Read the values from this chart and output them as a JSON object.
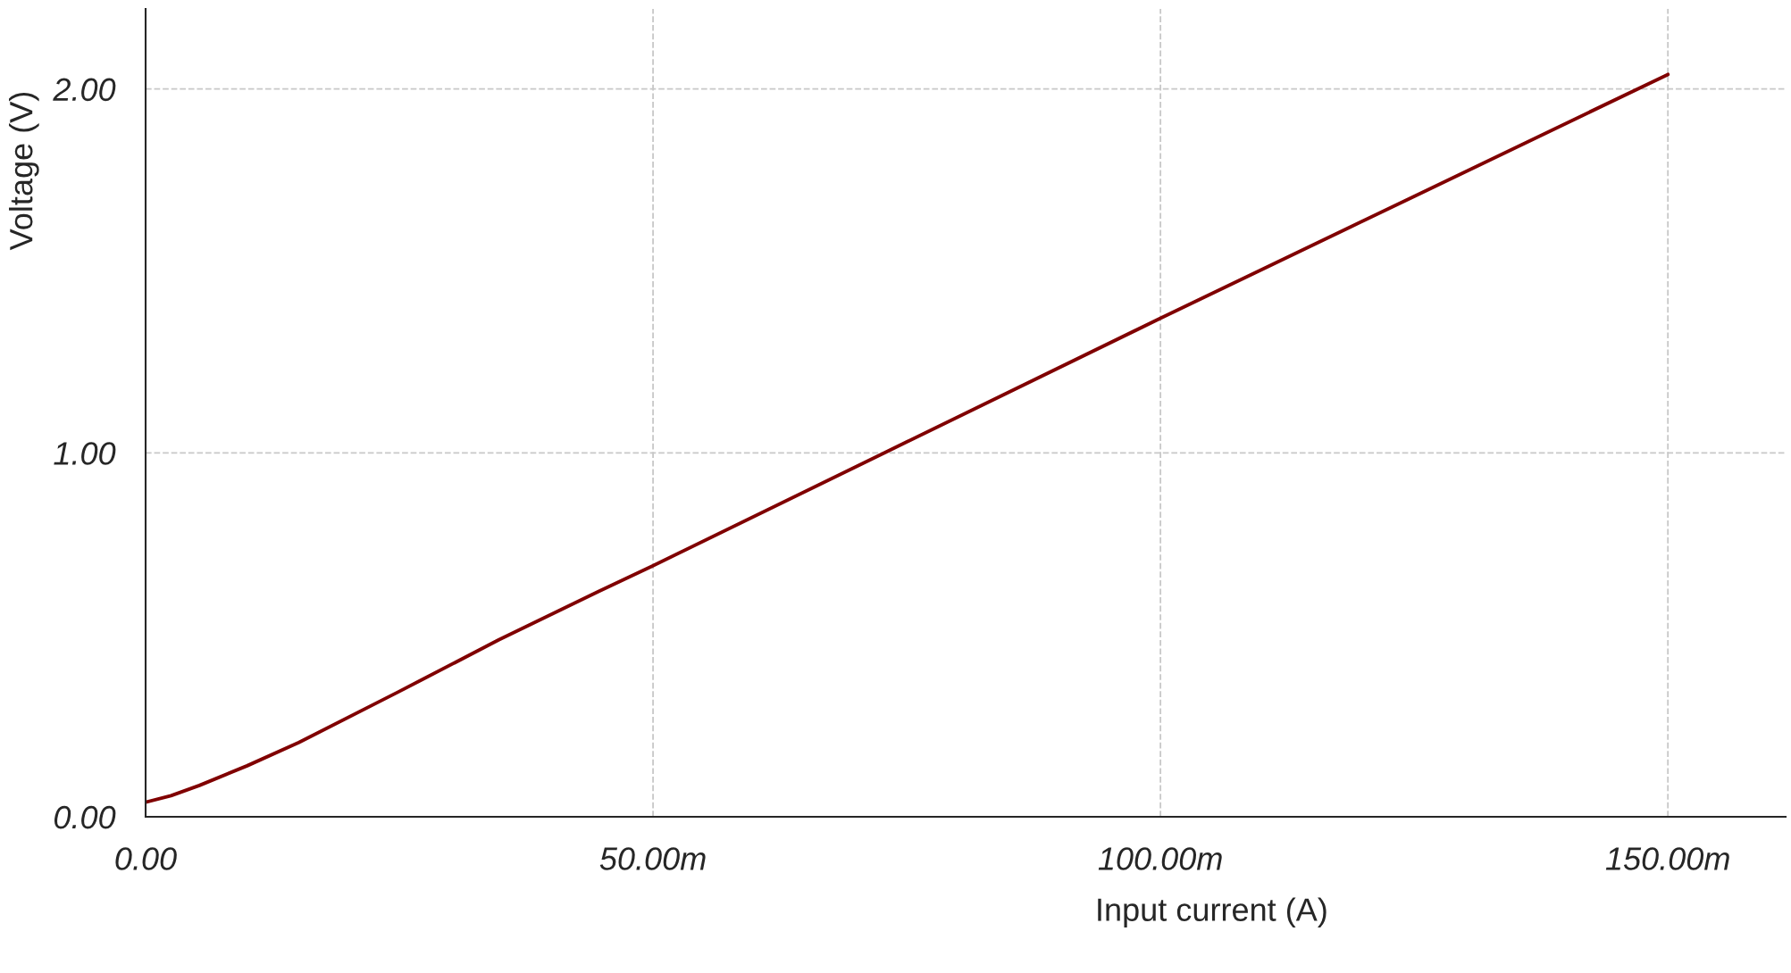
{
  "chart_data": {
    "type": "line",
    "xlabel": "Input current (A)",
    "ylabel": "Voltage (V)",
    "x": [
      0,
      2.5,
      5.3,
      10,
      15.1,
      24.9,
      34.8,
      44.6,
      50,
      75,
      100,
      125,
      150
    ],
    "series": [
      {
        "color": "#800000",
        "values": [
          0.04,
          0.058,
          0.086,
          0.14,
          0.204,
          0.343,
          0.486,
          0.619,
          0.69,
          1.03,
          1.37,
          1.705,
          2.04
        ]
      }
    ],
    "xlim": [
      0,
      161.6
    ],
    "ylim": [
      0,
      2.22
    ],
    "xticks": [
      {
        "value": 0,
        "label": "0.00"
      },
      {
        "value": 50,
        "label": "50.00m"
      },
      {
        "value": 100,
        "label": "100.00m"
      },
      {
        "value": 150,
        "label": "150.00m"
      }
    ],
    "yticks": [
      {
        "value": 0,
        "label": "0.00"
      },
      {
        "value": 1,
        "label": "1.00"
      },
      {
        "value": 2,
        "label": "2.00"
      }
    ],
    "grid": true,
    "marker": "none",
    "line_style": "solid"
  }
}
